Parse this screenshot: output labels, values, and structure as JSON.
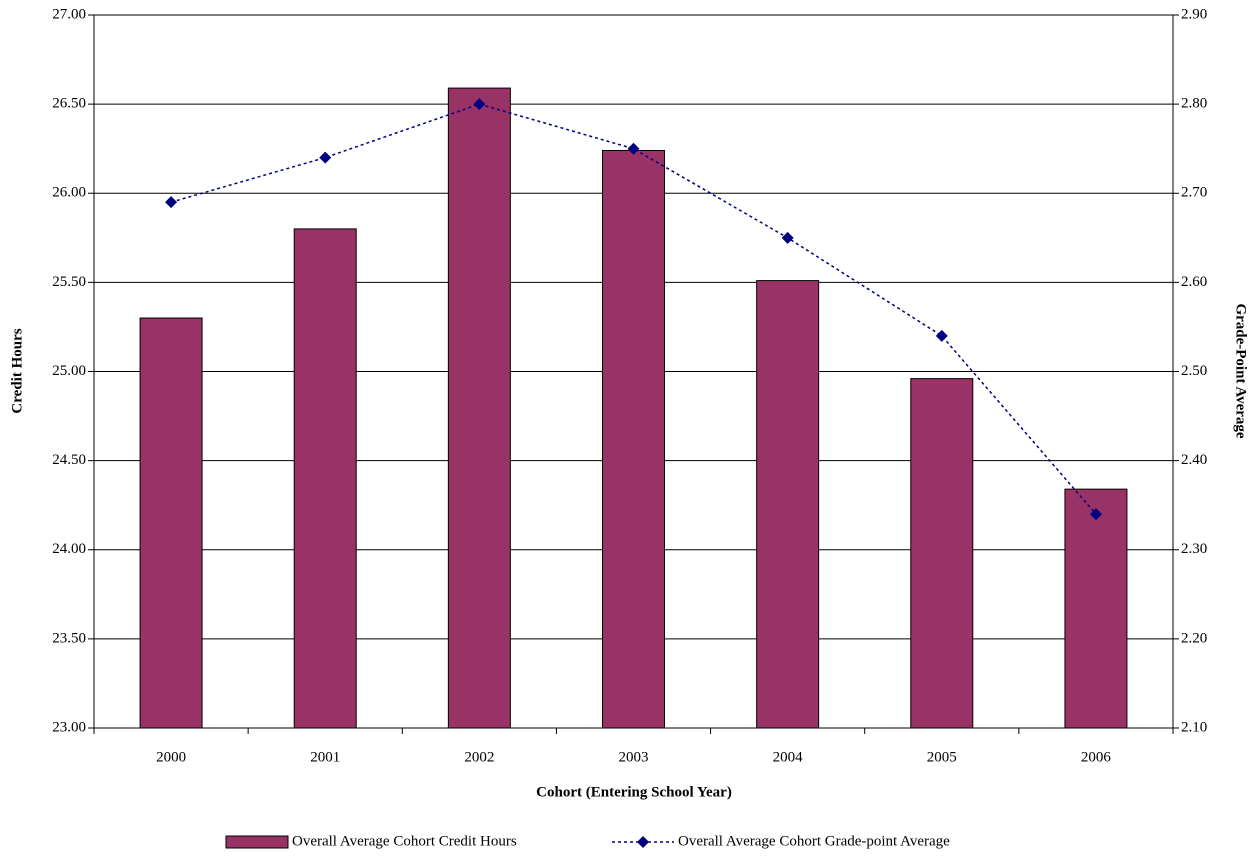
{
  "chart_data": {
    "type": "bar_line",
    "x_label": "Cohort (Entering School Year)",
    "y_label": "Credit Hours",
    "y2_label": "Grade-Point Average",
    "categories": [
      "2000",
      "2001",
      "2002",
      "2003",
      "2004",
      "2005",
      "2006"
    ],
    "series": [
      {
        "name": "Overall Average Cohort Credit Hours",
        "type": "bar",
        "color": "#993366",
        "values": [
          25.3,
          25.8,
          26.59,
          26.24,
          25.51,
          24.96,
          24.34
        ]
      },
      {
        "name": "Overall Average Cohort Grade-point Average",
        "type": "line",
        "axis": "y2",
        "color": "#000080",
        "values": [
          2.69,
          2.74,
          2.8,
          2.75,
          2.65,
          2.54,
          2.34
        ]
      }
    ],
    "ylim": [
      23,
      27
    ],
    "yticks": [
      {
        "value": 23,
        "label": "23.00"
      },
      {
        "value": 23.5,
        "label": "23.50"
      },
      {
        "value": 24,
        "label": "24.00"
      },
      {
        "value": 24.5,
        "label": "24.50"
      },
      {
        "value": 25,
        "label": "25.00"
      },
      {
        "value": 25.5,
        "label": "25.50"
      },
      {
        "value": 26,
        "label": "26.00"
      },
      {
        "value": 26.5,
        "label": "26.50"
      },
      {
        "value": 27,
        "label": "27.00"
      }
    ],
    "y2lim": [
      2.1,
      2.9
    ],
    "y2ticks": [
      {
        "value": 2.1,
        "label": "2.10"
      },
      {
        "value": 2.2,
        "label": "2.20"
      },
      {
        "value": 2.3,
        "label": "2.30"
      },
      {
        "value": 2.4,
        "label": "2.40"
      },
      {
        "value": 2.5,
        "label": "2.50"
      },
      {
        "value": 2.6,
        "label": "2.60"
      },
      {
        "value": 2.7,
        "label": "2.70"
      },
      {
        "value": 2.8,
        "label": "2.80"
      },
      {
        "value": 2.9,
        "label": "2.90"
      }
    ],
    "grid": true,
    "legend": "bottom"
  }
}
